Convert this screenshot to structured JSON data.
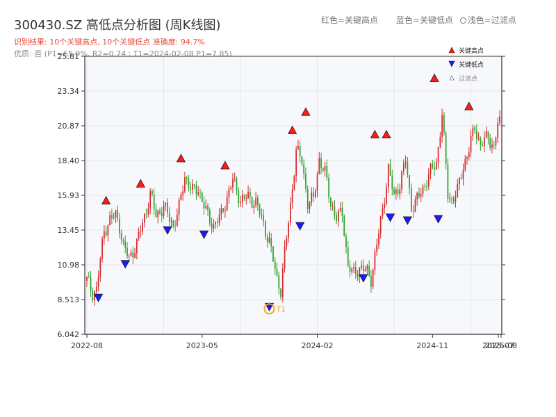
{
  "header": {
    "title": "300430.SZ 高低点分析图 (周K线图)",
    "legend_red": "红色=关键高点",
    "legend_blue": "蓝色=关键低点",
    "legend_faint": "浅色=过滤点",
    "result_line": "识别结果: 10个关键高点, 10个关键低点  准确度: 94.7%",
    "quality_line": "优质: 否 (P1=65.9%, R2=0.74 ; T1=2024-02-08 P1=7.85)"
  },
  "chart_data": {
    "type": "candlestick",
    "title": "300430.SZ 高低点分析图 (周K线图)",
    "ylim": [
      6.042,
      25.81
    ],
    "yticks": [
      "6.042",
      "8.513",
      "10.98",
      "13.45",
      "15.93",
      "18.40",
      "20.87",
      "23.34",
      "25.81"
    ],
    "xticks": [
      "2022-08",
      "2023-05",
      "2024-02",
      "2024-11",
      "2025-07",
      "2025-08"
    ],
    "grid": true,
    "legend_position": "top-right",
    "legend": [
      "关键高点",
      "关键低点",
      "过滤点"
    ],
    "colors": {
      "up": "#d62728",
      "down": "#2ca02c",
      "high_marker": "#ff1a1a",
      "low_marker": "#1a1aff",
      "t1": "#f5a623"
    },
    "close_anchors": [
      [
        0,
        9.9
      ],
      [
        3,
        9.0
      ],
      [
        5,
        9.2
      ],
      [
        9,
        13.4
      ],
      [
        12,
        14.2
      ],
      [
        15,
        14.5
      ],
      [
        17,
        13.8
      ],
      [
        19,
        12.3
      ],
      [
        22,
        11.4
      ],
      [
        26,
        12.5
      ],
      [
        30,
        14.4
      ],
      [
        33,
        16.0
      ],
      [
        36,
        14.5
      ],
      [
        40,
        15.1
      ],
      [
        45,
        13.8
      ],
      [
        48,
        15.0
      ],
      [
        51,
        17.3
      ],
      [
        55,
        16.2
      ],
      [
        58,
        16.4
      ],
      [
        63,
        14.4
      ],
      [
        66,
        13.8
      ],
      [
        70,
        14.5
      ],
      [
        73,
        15.8
      ],
      [
        76,
        17.0
      ],
      [
        80,
        15.6
      ],
      [
        84,
        15.8
      ],
      [
        88,
        15.4
      ],
      [
        91,
        14.3
      ],
      [
        95,
        12.6
      ],
      [
        99,
        10.0
      ],
      [
        101,
        9.2
      ],
      [
        103,
        11.8
      ],
      [
        106,
        15.2
      ],
      [
        109,
        19.1
      ],
      [
        112,
        18.4
      ],
      [
        115,
        15.4
      ],
      [
        118,
        15.6
      ],
      [
        121,
        18.5
      ],
      [
        124,
        17.5
      ],
      [
        127,
        15.4
      ],
      [
        130,
        14.3
      ],
      [
        133,
        14.7
      ],
      [
        136,
        10.9
      ],
      [
        139,
        10.3
      ],
      [
        142,
        10.8
      ],
      [
        145,
        10.6
      ],
      [
        148,
        10.0
      ],
      [
        151,
        12.4
      ],
      [
        154,
        14.9
      ],
      [
        157,
        17.8
      ],
      [
        160,
        15.8
      ],
      [
        163,
        16.8
      ],
      [
        166,
        18.4
      ],
      [
        169,
        15.1
      ],
      [
        172,
        15.6
      ],
      [
        175,
        16.4
      ],
      [
        178,
        17.4
      ],
      [
        182,
        18.2
      ],
      [
        185,
        21.7
      ],
      [
        188,
        16.0
      ],
      [
        190,
        15.6
      ],
      [
        193,
        16.2
      ],
      [
        196,
        18.0
      ],
      [
        199,
        19.2
      ],
      [
        202,
        20.8
      ],
      [
        205,
        19.5
      ],
      [
        209,
        20.1
      ],
      [
        212,
        19.3
      ],
      [
        214,
        21.0
      ]
    ],
    "key_highs": [
      {
        "i": 10,
        "price": 15.3
      },
      {
        "i": 28,
        "price": 16.5
      },
      {
        "i": 49,
        "price": 18.3
      },
      {
        "i": 72,
        "price": 17.8
      },
      {
        "i": 107,
        "price": 20.3
      },
      {
        "i": 114,
        "price": 21.6
      },
      {
        "i": 150,
        "price": 20.0
      },
      {
        "i": 156,
        "price": 20.0
      },
      {
        "i": 181,
        "price": 24.0
      },
      {
        "i": 199,
        "price": 22.0
      }
    ],
    "key_lows": [
      {
        "i": 6,
        "price": 8.9
      },
      {
        "i": 20,
        "price": 11.3
      },
      {
        "i": 42,
        "price": 13.7
      },
      {
        "i": 61,
        "price": 13.4
      },
      {
        "i": 95,
        "price": 8.25
      },
      {
        "i": 111,
        "price": 14.0
      },
      {
        "i": 144,
        "price": 10.3
      },
      {
        "i": 158,
        "price": 14.6
      },
      {
        "i": 167,
        "price": 14.4
      },
      {
        "i": 183,
        "price": 14.5
      }
    ],
    "t1": {
      "i": 95,
      "price": 7.85,
      "label": "T1"
    },
    "legend_labels": {
      "high": "关键高点",
      "low": "关键低点",
      "filtered": "过滤点"
    }
  }
}
